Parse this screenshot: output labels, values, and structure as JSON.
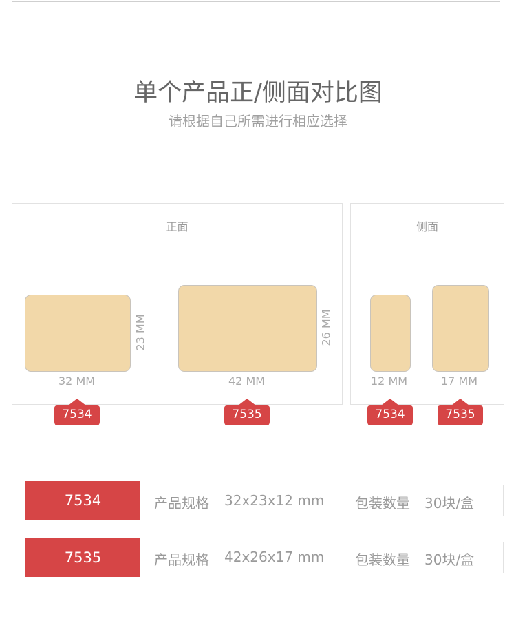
{
  "header": {
    "title": "单个产品正/侧面对比图",
    "subtitle": "请根据自己所需进行相应选择"
  },
  "front": {
    "title": "正面",
    "items": [
      {
        "code": "7534",
        "width": "32 MM",
        "height": "23 MM"
      },
      {
        "code": "7535",
        "width": "42 MM",
        "height": "26 MM"
      }
    ]
  },
  "side": {
    "title": "侧面",
    "items": [
      {
        "code": "7534",
        "width": "12 MM"
      },
      {
        "code": "7535",
        "width": "17 MM"
      }
    ]
  },
  "specs": [
    {
      "code": "7534",
      "spec_label": "产品规格",
      "spec_value": "32x23x12 mm",
      "pack_label": "包装数量",
      "pack_value": "30块/盒"
    },
    {
      "code": "7535",
      "spec_label": "产品规格",
      "spec_value": "42x26x17 mm",
      "pack_label": "包装数量",
      "pack_value": "30块/盒"
    }
  ],
  "colors": {
    "accent": "#d64546",
    "product": "#f2d8a9"
  }
}
